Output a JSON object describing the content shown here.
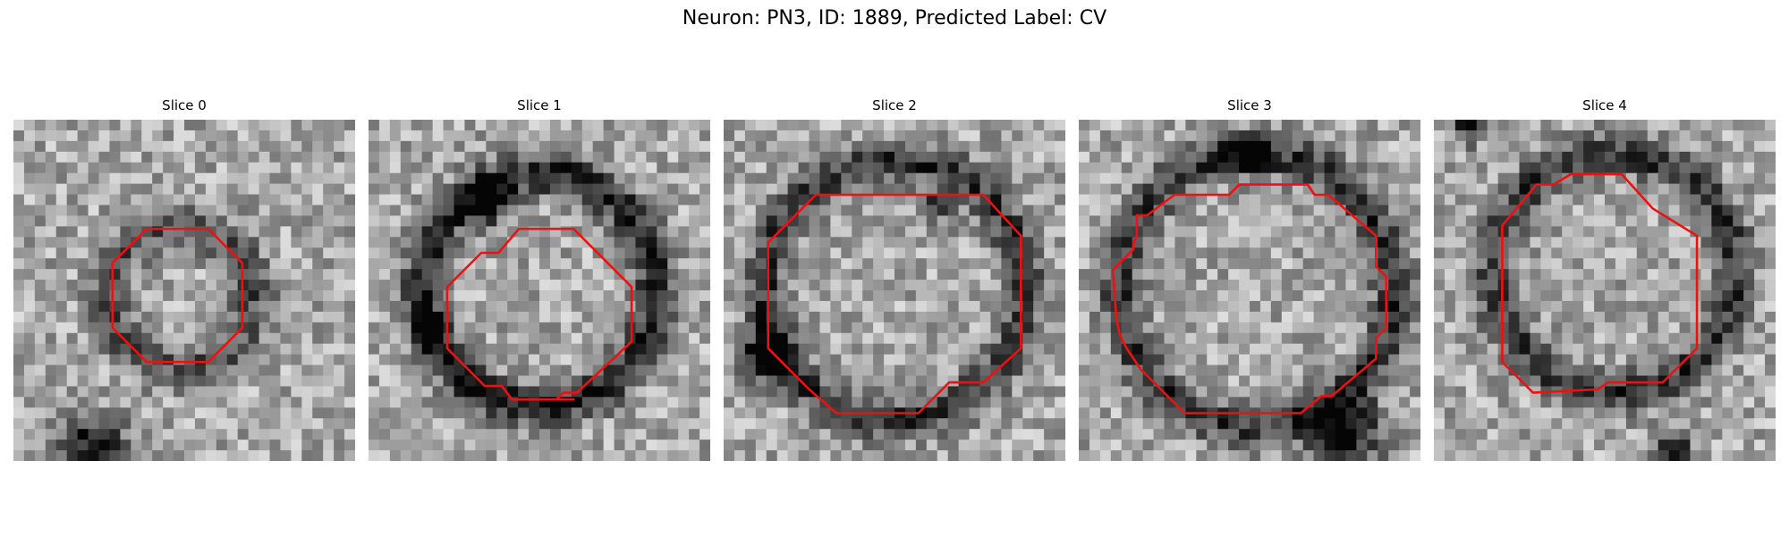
{
  "figure": {
    "title": "Neuron: PN3, ID: 1889, Predicted Label: CV",
    "contour_color": "#ee1111",
    "colormap": "gray"
  },
  "panels": [
    {
      "title": "Slice 0"
    },
    {
      "title": "Slice 1"
    },
    {
      "title": "Slice 2"
    },
    {
      "title": "Slice 3"
    },
    {
      "title": "Slice 4"
    }
  ]
}
